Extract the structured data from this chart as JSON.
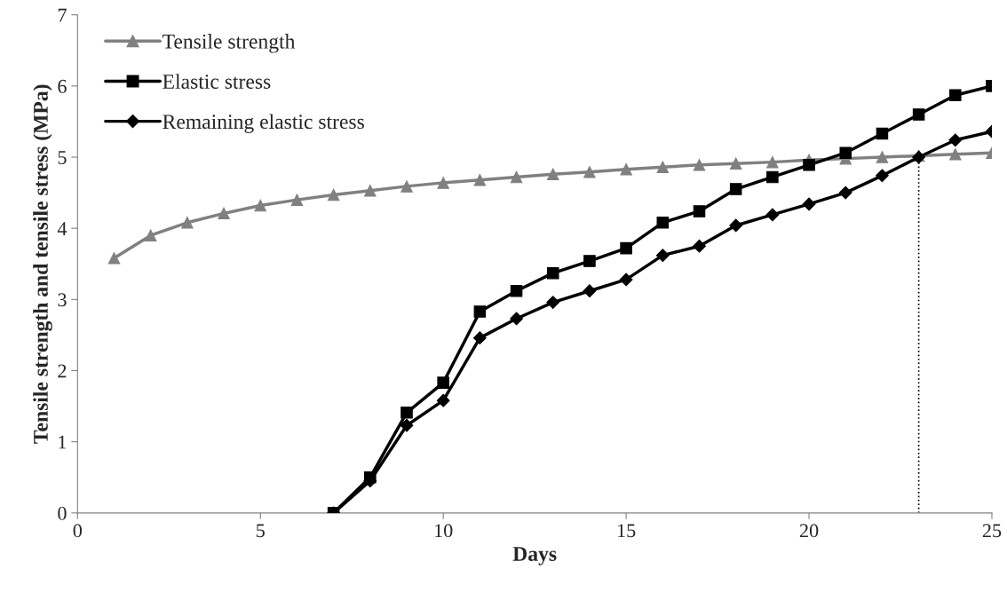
{
  "chart_data": {
    "type": "line",
    "xlabel": "Days",
    "ylabel": "Tensile strength and tensile stress (MPa)",
    "xlim": [
      0,
      25
    ],
    "xticks": [
      0,
      5,
      10,
      15,
      20,
      25
    ],
    "ylim": [
      0,
      7
    ],
    "yticks": [
      0,
      1,
      2,
      3,
      4,
      5,
      6,
      7
    ],
    "grid": false,
    "legend": "top left",
    "series": [
      {
        "name": "Tensile strength",
        "color": "#808080",
        "marker": "triangle",
        "x": [
          1,
          2,
          3,
          4,
          5,
          6,
          7,
          8,
          9,
          10,
          11,
          12,
          13,
          14,
          15,
          16,
          17,
          18,
          19,
          20,
          21,
          22,
          23,
          24,
          25
        ],
        "values": [
          3.58,
          3.9,
          4.08,
          4.21,
          4.32,
          4.4,
          4.47,
          4.53,
          4.59,
          4.64,
          4.68,
          4.72,
          4.76,
          4.79,
          4.83,
          4.86,
          4.89,
          4.91,
          4.93,
          4.96,
          4.98,
          5.0,
          5.02,
          5.04,
          5.06
        ]
      },
      {
        "name": "Elastic stress",
        "color": "#000000",
        "marker": "square",
        "x": [
          7,
          8,
          9,
          10,
          11,
          12,
          13,
          14,
          15,
          16,
          17,
          18,
          19,
          20,
          21,
          22,
          23,
          24,
          25
        ],
        "values": [
          0,
          0.5,
          1.41,
          1.83,
          2.83,
          3.12,
          3.37,
          3.54,
          3.72,
          4.08,
          4.24,
          4.55,
          4.72,
          4.89,
          5.06,
          5.33,
          5.6,
          5.87,
          6.0
        ]
      },
      {
        "name": "Remaining elastic stress",
        "color": "#000000",
        "marker": "diamond",
        "x": [
          7,
          8,
          9,
          10,
          11,
          12,
          13,
          14,
          15,
          16,
          17,
          18,
          19,
          20,
          21,
          22,
          23,
          24,
          25
        ],
        "values": [
          0,
          0.45,
          1.23,
          1.58,
          2.46,
          2.73,
          2.96,
          3.12,
          3.28,
          3.62,
          3.75,
          4.04,
          4.19,
          4.34,
          4.5,
          4.74,
          5.0,
          5.24,
          5.36
        ]
      },
      {
        "type": "line",
        "color": "#000000",
        "marker": "none",
        "line_style": "dotted",
        "x": [
          23,
          23
        ],
        "values": [
          0,
          5.0
        ]
      }
    ]
  }
}
